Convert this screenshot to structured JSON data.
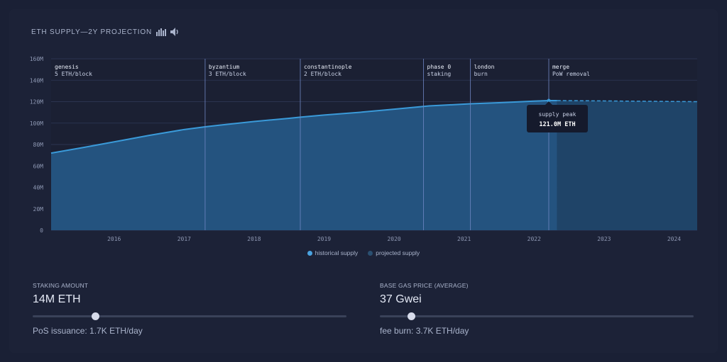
{
  "header": {
    "title": "ETH SUPPLY—2Y PROJECTION",
    "icons": [
      "bars-icon",
      "speaker-icon"
    ]
  },
  "chart_data": {
    "type": "area",
    "xlabel": "",
    "ylabel": "",
    "x_range": [
      2015.6,
      2024.83
    ],
    "ylim": [
      0,
      160
    ],
    "y_unit": "M",
    "y_ticks": [
      "0",
      "20M",
      "40M",
      "60M",
      "80M",
      "100M",
      "120M",
      "140M",
      "160M"
    ],
    "x_ticks": [
      "2016",
      "2017",
      "2018",
      "2019",
      "2020",
      "2021",
      "2022",
      "2023",
      "2024"
    ],
    "series": [
      {
        "name": "historical supply",
        "color": "#3a9ad9",
        "points": [
          [
            2015.6,
            72.0
          ],
          [
            2016.0,
            76.5
          ],
          [
            2016.5,
            82.5
          ],
          [
            2017.0,
            88.5
          ],
          [
            2017.5,
            94.0
          ],
          [
            2017.8,
            96.5
          ],
          [
            2018.0,
            98.0
          ],
          [
            2018.5,
            101.5
          ],
          [
            2019.0,
            104.5
          ],
          [
            2019.16,
            105.5
          ],
          [
            2019.5,
            107.5
          ],
          [
            2020.0,
            110.0
          ],
          [
            2020.5,
            113.0
          ],
          [
            2020.92,
            115.5
          ],
          [
            2021.0,
            116.0
          ],
          [
            2021.59,
            118.0
          ],
          [
            2022.0,
            119.0
          ],
          [
            2022.5,
            120.5
          ],
          [
            2022.71,
            121.0
          ],
          [
            2022.83,
            121.0
          ]
        ]
      },
      {
        "name": "projected supply",
        "color": "#1f4e74",
        "points": [
          [
            2022.83,
            121.0
          ],
          [
            2023.5,
            120.7
          ],
          [
            2024.0,
            120.4
          ],
          [
            2024.83,
            120.0
          ]
        ]
      }
    ],
    "events": [
      {
        "x": 2015.6,
        "name": "genesis",
        "detail": "5 ETH/block"
      },
      {
        "x": 2017.8,
        "name": "byzantium",
        "detail": "3 ETH/block"
      },
      {
        "x": 2019.16,
        "name": "constantinople",
        "detail": "2 ETH/block"
      },
      {
        "x": 2020.92,
        "name": "phase 0",
        "detail": "staking"
      },
      {
        "x": 2021.59,
        "name": "london",
        "detail": "burn"
      },
      {
        "x": 2022.71,
        "name": "merge",
        "detail": "PoW removal"
      }
    ],
    "annotation": {
      "x": 2022.71,
      "y": 121.0,
      "label": "supply peak",
      "value": "121.0M ETH"
    },
    "grid": true,
    "legend": "bottom-center"
  },
  "legend": [
    {
      "label": "historical supply",
      "color": "#4aa3e0"
    },
    {
      "label": "projected supply",
      "color": "#2a4f70"
    }
  ],
  "controls": {
    "staking": {
      "label": "STAKING AMOUNT",
      "value": "14M ETH",
      "slider_fraction": 0.2,
      "note": "PoS issuance: 1.7K ETH/day"
    },
    "gas": {
      "label": "BASE GAS PRICE (AVERAGE)",
      "value": "37 Gwei",
      "slider_fraction": 0.1,
      "note": "fee burn: 3.7K ETH/day"
    }
  }
}
